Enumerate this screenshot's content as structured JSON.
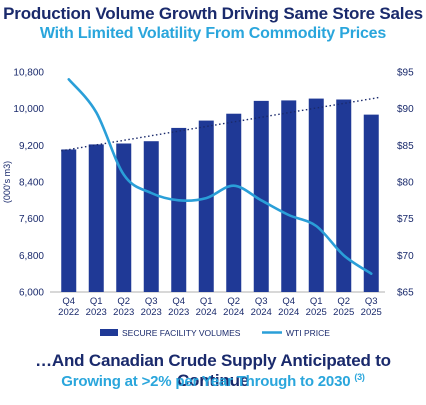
{
  "header": {
    "title": "Production Volume Growth Driving Same Store Sales",
    "subtitle": "With Limited Volatility From Commodity Prices"
  },
  "footer": {
    "line1": "…And Canadian Crude Supply Anticipated to Continue",
    "line2": "Growing at >2% per Year Through to 2030",
    "footnote_ref": "(3)"
  },
  "colors": {
    "title": "#1a2a6c",
    "subtitle": "#2aa6dc",
    "bars": "#1f3996",
    "line": "#2a9fd8",
    "trend": "#1a2a6c"
  },
  "chart_data": {
    "type": "bar",
    "categories": [
      "Q4 2022",
      "Q1 2023",
      "Q2 2023",
      "Q3 2023",
      "Q4 2023",
      "Q1 2024",
      "Q2 2024",
      "Q3 2024",
      "Q4 2024",
      "Q1 2025",
      "Q2 2025",
      "Q3 2025"
    ],
    "x_tick_labels": [
      [
        "Q4",
        "2022"
      ],
      [
        "Q1",
        "2023"
      ],
      [
        "Q2",
        "2023"
      ],
      [
        "Q3",
        "2023"
      ],
      [
        "Q4",
        "2023"
      ],
      [
        "Q1",
        "2024"
      ],
      [
        "Q2",
        "2024"
      ],
      [
        "Q3",
        "2024"
      ],
      [
        "Q4",
        "2024"
      ],
      [
        "Q1",
        "2025"
      ],
      [
        "Q2",
        "2025"
      ],
      [
        "Q3",
        "2025"
      ]
    ],
    "series": [
      {
        "name": "SECURE FACILITY VOLUMES",
        "type": "bar",
        "axis": "left",
        "values": [
          9110,
          9220,
          9240,
          9290,
          9580,
          9740,
          9890,
          10170,
          10180,
          10220,
          10200,
          9870
        ]
      },
      {
        "name": "WTI PRICE",
        "type": "line",
        "axis": "right",
        "values": [
          94.0,
          89.5,
          81.0,
          78.5,
          77.5,
          77.8,
          79.5,
          77.5,
          75.5,
          74.0,
          70.0,
          67.5
        ]
      }
    ],
    "trendline": {
      "style": "dotted",
      "axis": "left",
      "start": 9080,
      "end": 10250
    },
    "ylabel": "(000's m3)",
    "ylim": [
      6000,
      10800
    ],
    "y_ticks": [
      "6,000",
      "6,800",
      "7,600",
      "8,400",
      "9,200",
      "10,000",
      "10,800"
    ],
    "y2lim": [
      65,
      95
    ],
    "y2_ticks": [
      "$65",
      "$70",
      "$75",
      "$80",
      "$85",
      "$90",
      "$95"
    ],
    "grid": false,
    "legend_position": "bottom"
  }
}
